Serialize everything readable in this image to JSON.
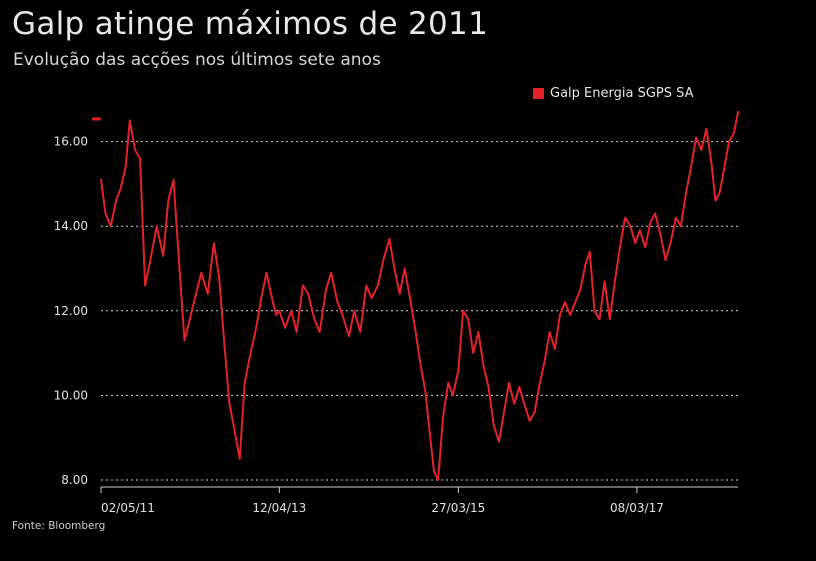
{
  "header": {
    "title": "Galp atinge máximos de 2011",
    "subtitle": "Evolução das acções nos últimos sete anos"
  },
  "footer": {
    "source": "Fonte: Bloomberg"
  },
  "colors": {
    "series": "#e3232b",
    "background": "#000000",
    "grid": "#cfcfcf",
    "text": "#e6e6e6"
  },
  "chart_data": {
    "type": "line",
    "title": "Galp atinge máximos de 2011",
    "subtitle": "Evolução das acções nos últimos sete anos",
    "xlabel": "",
    "ylabel": "",
    "ylim": [
      8,
      16.7
    ],
    "yticks": [
      8,
      10,
      12,
      14,
      16
    ],
    "ytick_labels": [
      "8.00",
      "10.00",
      "12.00",
      "14.00",
      "16.00"
    ],
    "xticks": [
      "2011-05-02",
      "2013-04-12",
      "2015-03-27",
      "2017-03-08"
    ],
    "xtick_labels": [
      "02/05/11",
      "12/04/13",
      "27/03/15",
      "08/03/17"
    ],
    "grid": true,
    "legend_position": "top-right",
    "series": [
      {
        "name": "Galp Energia SGPS SA",
        "color": "#e3232b",
        "points": [
          [
            "2011-05-02",
            15.1
          ],
          [
            "2011-05-20",
            14.3
          ],
          [
            "2011-06-10",
            14.0
          ],
          [
            "2011-07-01",
            14.6
          ],
          [
            "2011-07-20",
            14.9
          ],
          [
            "2011-08-08",
            15.4
          ],
          [
            "2011-08-25",
            16.5
          ],
          [
            "2011-09-15",
            15.8
          ],
          [
            "2011-10-05",
            15.6
          ],
          [
            "2011-10-25",
            12.6
          ],
          [
            "2011-11-15",
            13.2
          ],
          [
            "2011-12-10",
            14.0
          ],
          [
            "2012-01-05",
            13.3
          ],
          [
            "2012-01-25",
            14.6
          ],
          [
            "2012-02-15",
            15.1
          ],
          [
            "2012-03-10",
            13.0
          ],
          [
            "2012-03-30",
            11.3
          ],
          [
            "2012-04-20",
            11.8
          ],
          [
            "2012-05-15",
            12.4
          ],
          [
            "2012-06-05",
            12.9
          ],
          [
            "2012-07-01",
            12.4
          ],
          [
            "2012-07-25",
            13.6
          ],
          [
            "2012-08-15",
            12.8
          ],
          [
            "2012-09-05",
            11.2
          ],
          [
            "2012-09-25",
            9.8
          ],
          [
            "2012-10-15",
            9.2
          ],
          [
            "2012-11-05",
            8.5
          ],
          [
            "2012-11-25",
            10.3
          ],
          [
            "2012-12-15",
            10.9
          ],
          [
            "2013-01-10",
            11.6
          ],
          [
            "2013-01-30",
            12.3
          ],
          [
            "2013-02-20",
            12.9
          ],
          [
            "2013-03-10",
            12.4
          ],
          [
            "2013-03-30",
            11.9
          ],
          [
            "2013-04-12",
            12.0
          ],
          [
            "2013-05-05",
            11.6
          ],
          [
            "2013-05-30",
            12.0
          ],
          [
            "2013-06-20",
            11.5
          ],
          [
            "2013-07-15",
            12.6
          ],
          [
            "2013-08-05",
            12.4
          ],
          [
            "2013-08-30",
            11.8
          ],
          [
            "2013-09-20",
            11.5
          ],
          [
            "2013-10-15",
            12.5
          ],
          [
            "2013-11-05",
            12.9
          ],
          [
            "2013-11-30",
            12.2
          ],
          [
            "2013-12-20",
            11.9
          ],
          [
            "2014-01-15",
            11.4
          ],
          [
            "2014-02-05",
            12.0
          ],
          [
            "2014-03-01",
            11.5
          ],
          [
            "2014-03-25",
            12.6
          ],
          [
            "2014-04-15",
            12.3
          ],
          [
            "2014-05-10",
            12.6
          ],
          [
            "2014-06-01",
            13.2
          ],
          [
            "2014-06-25",
            13.7
          ],
          [
            "2014-07-15",
            13.0
          ],
          [
            "2014-08-05",
            12.4
          ],
          [
            "2014-08-25",
            13.0
          ],
          [
            "2014-09-15",
            12.3
          ],
          [
            "2014-10-05",
            11.6
          ],
          [
            "2014-10-25",
            10.8
          ],
          [
            "2014-11-15",
            10.1
          ],
          [
            "2014-12-05",
            9.0
          ],
          [
            "2014-12-20",
            8.2
          ],
          [
            "2015-01-05",
            8.0
          ],
          [
            "2015-01-25",
            9.5
          ],
          [
            "2015-02-15",
            10.3
          ],
          [
            "2015-03-05",
            10.0
          ],
          [
            "2015-03-27",
            10.6
          ],
          [
            "2015-04-15",
            12.0
          ],
          [
            "2015-05-05",
            11.8
          ],
          [
            "2015-05-25",
            11.0
          ],
          [
            "2015-06-15",
            11.5
          ],
          [
            "2015-07-05",
            10.7
          ],
          [
            "2015-07-25",
            10.2
          ],
          [
            "2015-08-15",
            9.3
          ],
          [
            "2015-09-05",
            8.9
          ],
          [
            "2015-09-25",
            9.6
          ],
          [
            "2015-10-15",
            10.3
          ],
          [
            "2015-11-05",
            9.8
          ],
          [
            "2015-11-25",
            10.2
          ],
          [
            "2015-12-15",
            9.8
          ],
          [
            "2016-01-05",
            9.4
          ],
          [
            "2016-01-25",
            9.6
          ],
          [
            "2016-02-15",
            10.3
          ],
          [
            "2016-03-05",
            10.8
          ],
          [
            "2016-03-25",
            11.5
          ],
          [
            "2016-04-15",
            11.1
          ],
          [
            "2016-05-05",
            11.9
          ],
          [
            "2016-05-25",
            12.2
          ],
          [
            "2016-06-15",
            11.9
          ],
          [
            "2016-07-05",
            12.2
          ],
          [
            "2016-07-25",
            12.5
          ],
          [
            "2016-08-15",
            13.1
          ],
          [
            "2016-09-01",
            13.4
          ],
          [
            "2016-09-20",
            12.0
          ],
          [
            "2016-10-10",
            11.8
          ],
          [
            "2016-10-30",
            12.7
          ],
          [
            "2016-11-20",
            11.8
          ],
          [
            "2016-12-10",
            12.7
          ],
          [
            "2016-12-30",
            13.5
          ],
          [
            "2017-01-20",
            14.2
          ],
          [
            "2017-02-10",
            14.0
          ],
          [
            "2017-03-01",
            13.6
          ],
          [
            "2017-03-20",
            13.9
          ],
          [
            "2017-04-10",
            13.5
          ],
          [
            "2017-05-01",
            14.1
          ],
          [
            "2017-05-20",
            14.3
          ],
          [
            "2017-06-10",
            13.8
          ],
          [
            "2017-06-30",
            13.2
          ],
          [
            "2017-07-20",
            13.6
          ],
          [
            "2017-08-10",
            14.2
          ],
          [
            "2017-08-30",
            14.0
          ],
          [
            "2017-09-20",
            14.8
          ],
          [
            "2017-10-10",
            15.4
          ],
          [
            "2017-10-30",
            16.1
          ],
          [
            "2017-11-20",
            15.8
          ],
          [
            "2017-12-10",
            16.3
          ],
          [
            "2017-12-30",
            15.5
          ],
          [
            "2018-01-15",
            14.6
          ],
          [
            "2018-02-01",
            14.8
          ],
          [
            "2018-02-20",
            15.4
          ],
          [
            "2018-03-10",
            16.0
          ],
          [
            "2018-03-30",
            16.2
          ],
          [
            "2018-04-15",
            16.7
          ]
        ]
      }
    ]
  }
}
